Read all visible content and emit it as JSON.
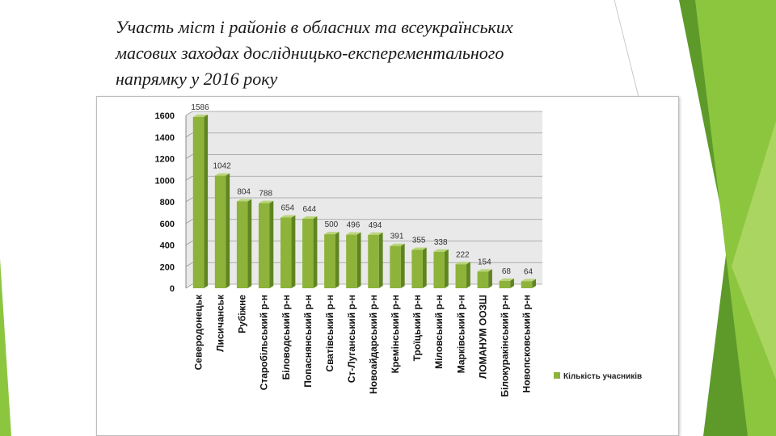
{
  "slide": {
    "title_lines": [
      "Участь міст і районів в обласних та всеукраїнських",
      "масових заходах дослідницько-експерементального",
      "напрямку у 2016 року"
    ]
  },
  "colors": {
    "bar_front": "#8db33a",
    "bar_side": "#5f8420",
    "bar_top": "#b9d47a",
    "plot_bg": "#e9e9e9",
    "deco_green_dark": "#5e9a2a",
    "deco_green_light": "#8cc63f"
  },
  "chart_data": {
    "type": "bar",
    "categories": [
      "Северодонецьк",
      "Лисичанськ",
      "Рубіжне",
      "Старобільський р-н",
      "Біловодський р-н",
      "Попаснянський р-н",
      "Сватівський р-н",
      "Ст-Луганський р-н",
      "Новоайдарський р-н",
      "Кремінський р-н",
      "Троїцький р-н",
      "Міловський р-н",
      "Марківський р-н",
      "ЛОМАНУМ ООЗШ",
      "Білокуракінський р-н",
      "Новопсковський р-н"
    ],
    "series": [
      {
        "name": "Кількість учасників",
        "values": [
          1586,
          1042,
          804,
          788,
          654,
          644,
          500,
          496,
          494,
          391,
          355,
          338,
          222,
          154,
          68,
          64
        ]
      }
    ],
    "ylim": [
      0,
      1600
    ],
    "yticks": [
      0,
      200,
      400,
      600,
      800,
      1000,
      1200,
      1400,
      1600
    ],
    "grid": true,
    "legend_position": "right",
    "data_labels": true,
    "title": "",
    "xlabel": "",
    "ylabel": ""
  }
}
